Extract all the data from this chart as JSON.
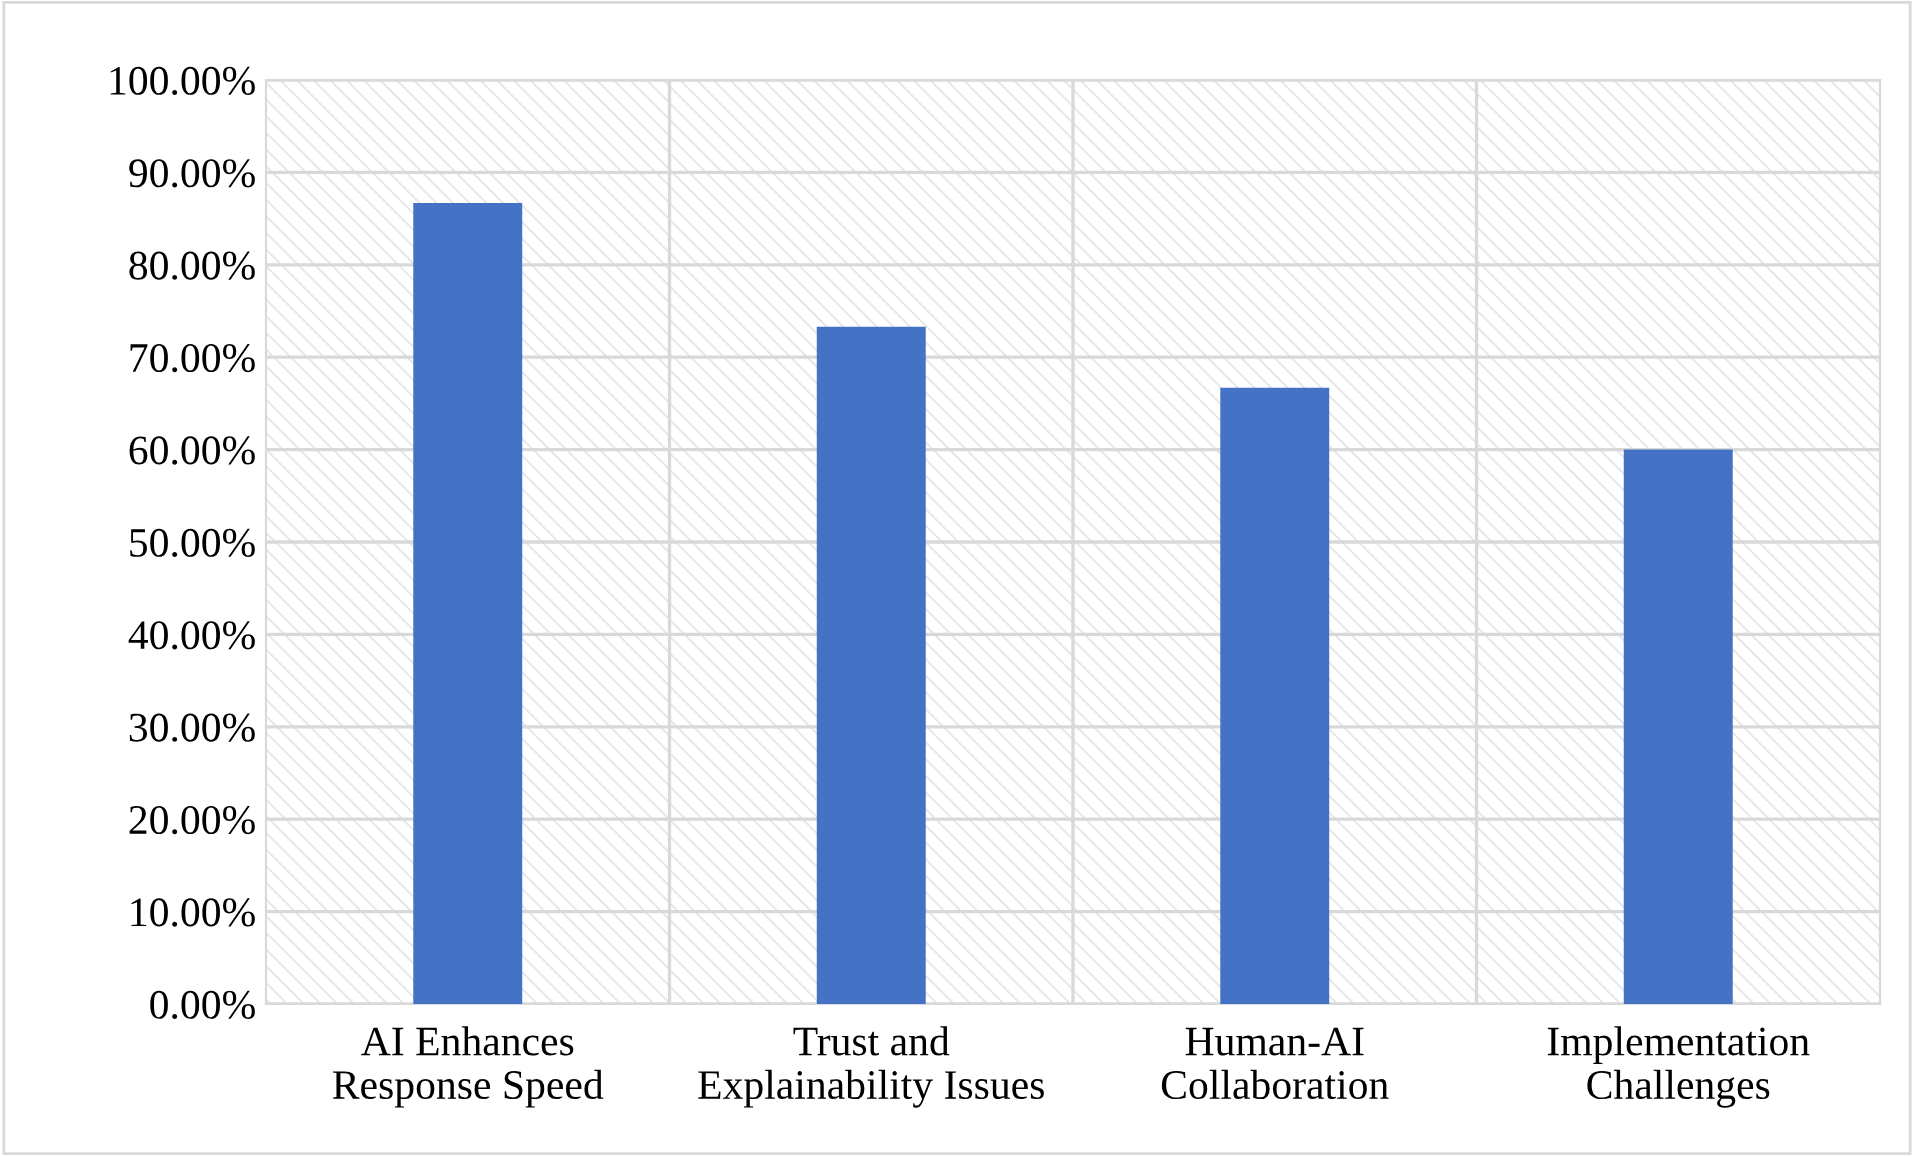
{
  "chart_data": {
    "type": "bar",
    "categories": [
      "AI Enhances\nResponse Speed",
      "Trust and\nExplainability Issues",
      "Human-AI\nCollaboration",
      "Implementation\nChallenges"
    ],
    "values": [
      86.7,
      73.3,
      66.7,
      60.0
    ],
    "color": "#4472c4",
    "ylim": [
      0,
      100
    ],
    "yticks": [
      {
        "value": 0,
        "label": "0.00%"
      },
      {
        "value": 10,
        "label": "10.00%"
      },
      {
        "value": 20,
        "label": "20.00%"
      },
      {
        "value": 30,
        "label": "30.00%"
      },
      {
        "value": 40,
        "label": "40.00%"
      },
      {
        "value": 50,
        "label": "50.00%"
      },
      {
        "value": 60,
        "label": "60.00%"
      },
      {
        "value": 70,
        "label": "70.00%"
      },
      {
        "value": 80,
        "label": "80.00%"
      },
      {
        "value": 90,
        "label": "90.00%"
      },
      {
        "value": 100,
        "label": "100.00%"
      }
    ],
    "grid": true,
    "legend": false
  }
}
